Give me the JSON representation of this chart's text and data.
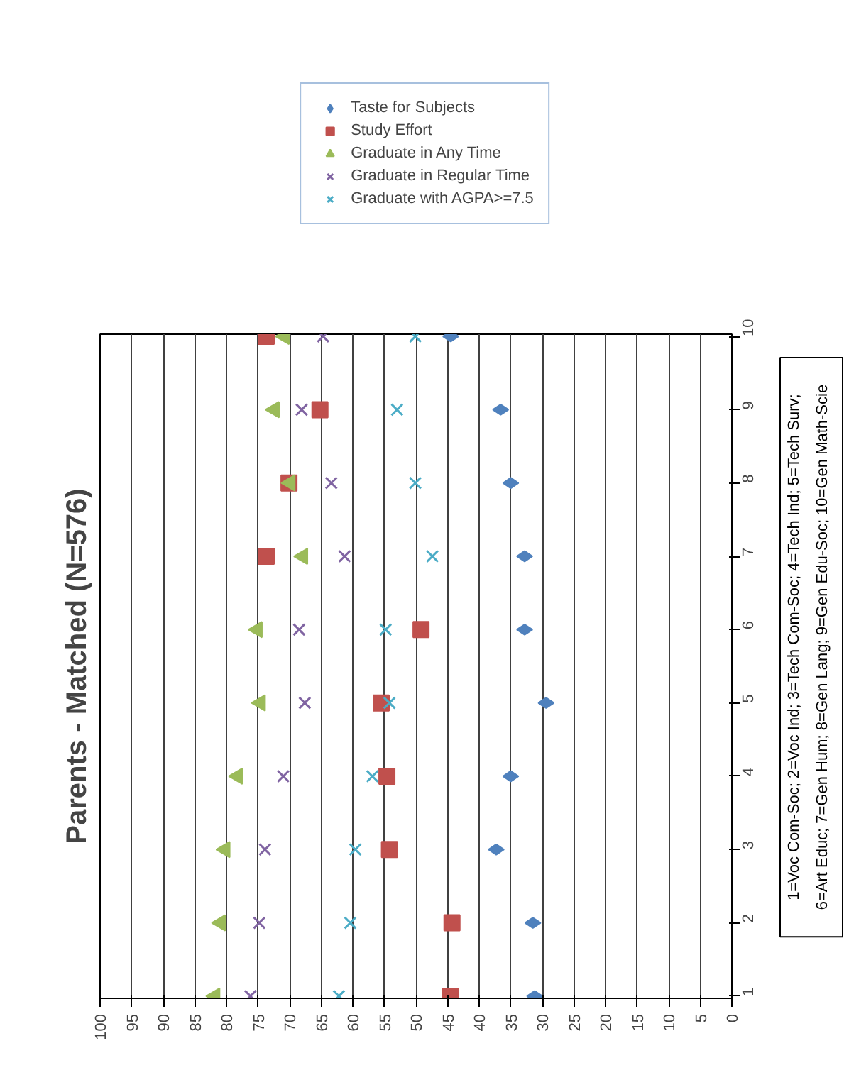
{
  "chart_data": {
    "type": "scatter",
    "title": "Parents - Matched (N=576)",
    "categories": [
      "10",
      "9",
      "8",
      "7",
      "6",
      "5",
      "4",
      "3",
      "2",
      "1"
    ],
    "orientation": "horizontal",
    "xlim": [
      100,
      0
    ],
    "xticks": [
      100,
      95,
      90,
      85,
      80,
      75,
      70,
      65,
      60,
      55,
      50,
      45,
      40,
      35,
      30,
      25,
      20,
      15,
      10,
      5,
      0
    ],
    "grid": "x",
    "legend": "top",
    "series": [
      {
        "name": "Taste for Subjects",
        "color": "#4f81bd",
        "marker": "diamond",
        "values": [
          44.5,
          36.6,
          35,
          32.8,
          32.8,
          29.4,
          35,
          37.3,
          31.5,
          31.2
        ]
      },
      {
        "name": "Study Effort",
        "color": "#c0504d",
        "marker": "square",
        "values": [
          73.7,
          65.2,
          70.1,
          73.7,
          49.2,
          55.5,
          54.6,
          54.2,
          44.3,
          44.5
        ]
      },
      {
        "name": "Graduate in Any Time",
        "color": "#9bbb59",
        "marker": "triangle",
        "values": [
          70.8,
          72.4,
          69.9,
          67.9,
          75.1,
          74.6,
          78.2,
          80.2,
          80.9,
          81.8
        ]
      },
      {
        "name": "Graduate in Regular Time",
        "color": "#8064a2",
        "marker": "cross",
        "values": [
          64.7,
          68.1,
          63.4,
          61.3,
          68.5,
          67.6,
          71,
          73.9,
          74.8,
          76.2
        ]
      },
      {
        "name": "Graduate with AGPA>=7.5",
        "color": "#4bacc6",
        "marker": "cross",
        "values": [
          50.1,
          53,
          50.1,
          47.4,
          54.8,
          54.2,
          56.9,
          59.6,
          60.4,
          62.2
        ]
      }
    ],
    "annotations": [
      "1=Voc Com-Soc; 2=Voc Ind; 3=Tech Com-Soc; 4=Tech Ind; 5=Tech Surv;",
      "6=Art Educ; 7=Gen Hum; 8=Gen Lang; 9=Gen Edu-Soc; 10=Gen Math-Scie"
    ]
  }
}
